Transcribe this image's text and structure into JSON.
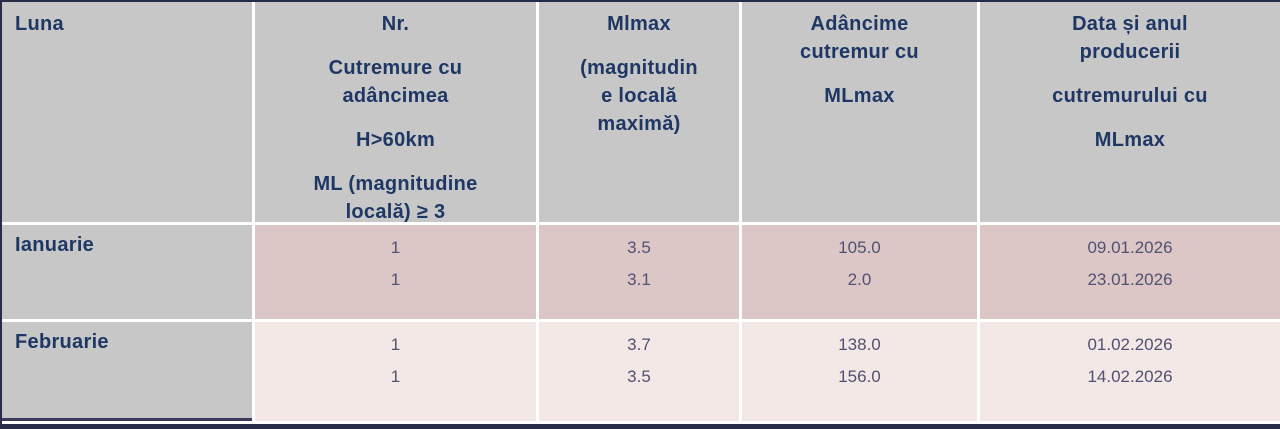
{
  "table": {
    "title_semantic": "Monthly earthquake summary table (Romanian)",
    "header": {
      "col1": {
        "lines": [
          "Luna"
        ]
      },
      "col2": {
        "lines": [
          "Nr.",
          "Cutremure cu",
          "adâncimea",
          "H>60km",
          "ML (magnitudine",
          "locală) ≥ 3"
        ]
      },
      "col3": {
        "lines": [
          "Mlmax",
          "(magnitudin",
          "e locală",
          "maximă)"
        ]
      },
      "col4": {
        "lines": [
          "Adâncime",
          "cutremur cu",
          "MLmax"
        ]
      },
      "col5": {
        "lines": [
          "Data și anul",
          "producerii",
          "cutremurului cu",
          "MLmax"
        ]
      }
    },
    "rows": [
      {
        "month": "Ianuarie",
        "entries": [
          {
            "nr": "1",
            "mlmax": "3.5",
            "depth": "105.0",
            "date": "09.01.2026"
          },
          {
            "nr": "1",
            "mlmax": "3.1",
            "depth": "2.0",
            "date": "23.01.2026"
          }
        ]
      },
      {
        "month": "Februarie",
        "entries": [
          {
            "nr": "1",
            "mlmax": "3.7",
            "depth": "138.0",
            "date": "01.02.2026"
          },
          {
            "nr": "1",
            "mlmax": "3.5",
            "depth": "156.0",
            "date": "14.02.2026"
          }
        ]
      }
    ]
  },
  "colors": {
    "header_bg": "#c7c7c7",
    "row_ianuarie_bg": "#dcc6c6",
    "row_februarie_bg": "#f3e8e6",
    "separator": "#ffffff",
    "header_text": "#1e3765",
    "data_text": "#505173",
    "edge_border": "#272d49"
  }
}
